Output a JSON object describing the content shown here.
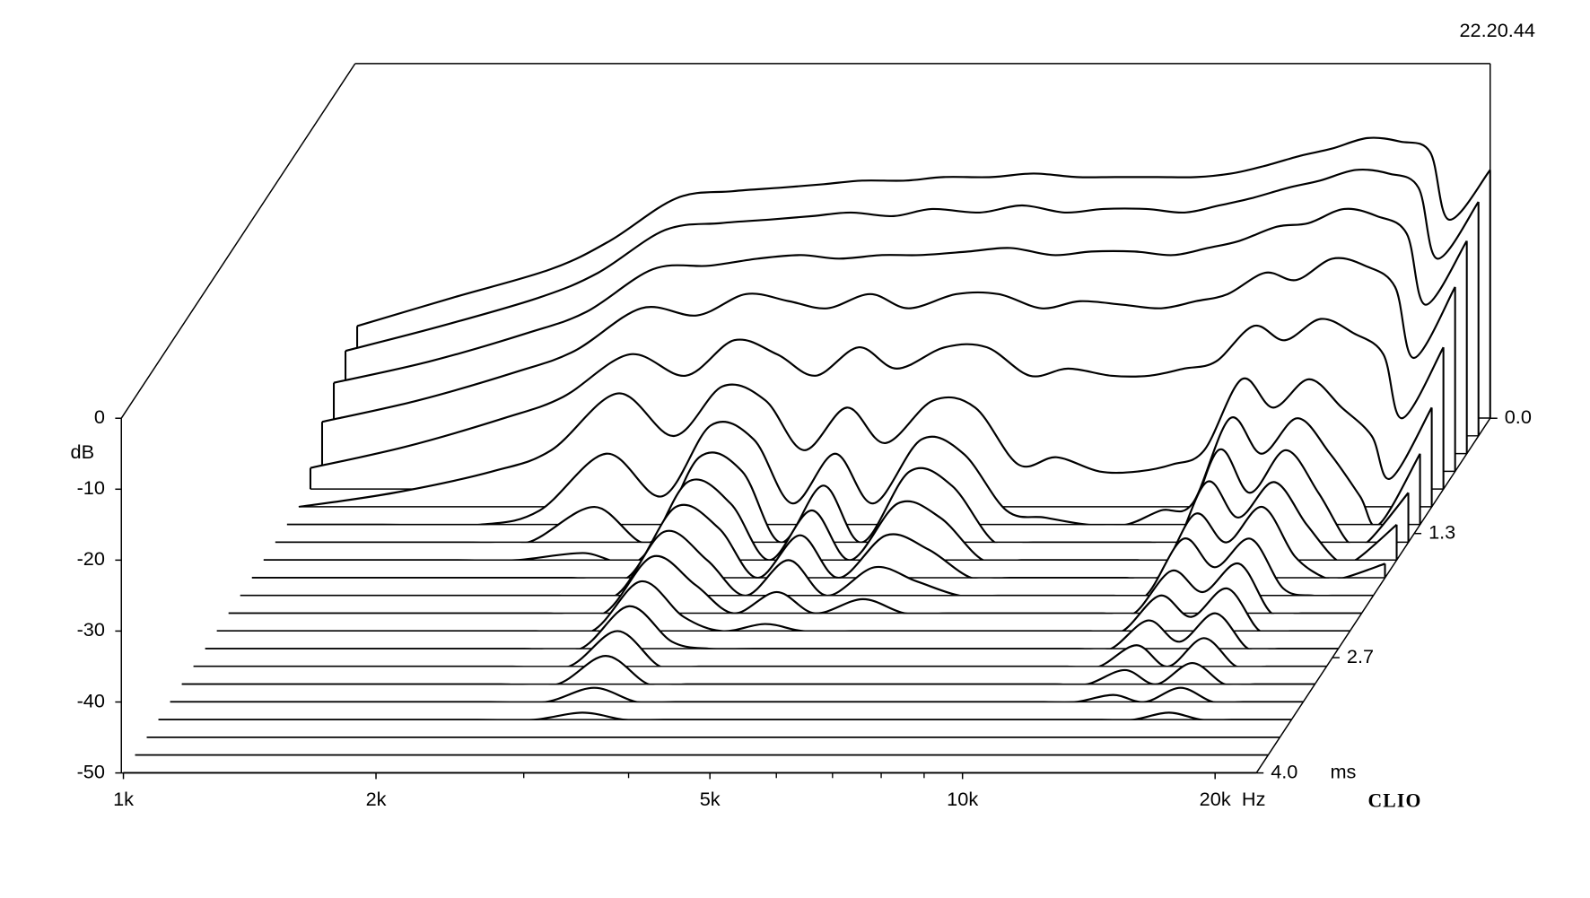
{
  "chart_data": {
    "type": "waterfall",
    "stamp": "22.20.44",
    "brand": "CLIO",
    "y_label": "dB",
    "x_label": "Hz",
    "t_label": "ms",
    "color": "#000000",
    "log_x": true,
    "x": [
      1000,
      1300,
      1700,
      2000,
      2400,
      2800,
      3200,
      3600,
      4000,
      4500,
      5000,
      5700,
      6400,
      7200,
      8000,
      9000,
      10000,
      11000,
      12000,
      13300,
      14500,
      16000,
      17500,
      19000,
      20000,
      22400
    ],
    "xlim": [
      1000,
      22400
    ],
    "xticks": [
      {
        "value": 1000,
        "label": "1k"
      },
      {
        "value": 2000,
        "label": "2k"
      },
      {
        "value": 5000,
        "label": "5k"
      },
      {
        "value": 10000,
        "label": "10k"
      },
      {
        "value": 20000,
        "label": "20k"
      }
    ],
    "xminor": [
      3000,
      4000,
      6000,
      7000,
      8000,
      9000
    ],
    "ylim": [
      -50,
      0
    ],
    "yticks": [
      0,
      -10,
      -20,
      -30,
      -40,
      -50
    ],
    "tlim": [
      0,
      4
    ],
    "tticks": [
      {
        "value": 0,
        "label": "0.0"
      },
      1.3,
      2.7,
      {
        "value": 4,
        "label": "4.0"
      }
    ],
    "slices": [
      {
        "time": 0,
        "values": [
          -37,
          -33,
          -29,
          -25,
          -19,
          -18,
          -17.5,
          -17,
          -16.5,
          -16.5,
          -16,
          -16,
          -15.5,
          -16,
          -16,
          -16,
          -16,
          -15.5,
          -14.5,
          -13,
          -12,
          -10.5,
          -11,
          -12.5,
          -22,
          -15
        ]
      },
      {
        "time": 0.2,
        "values": [
          -38,
          -34.5,
          -30.5,
          -27,
          -21,
          -20,
          -19.5,
          -19,
          -18.5,
          -19,
          -18,
          -18.5,
          -17.5,
          -18.5,
          -18,
          -18,
          -18.5,
          -17.5,
          -16.5,
          -15,
          -14,
          -12.5,
          -13,
          -15,
          -25,
          -17
        ]
      },
      {
        "time": 0.4,
        "values": [
          -40,
          -37,
          -33,
          -30,
          -24,
          -23.5,
          -22.5,
          -22,
          -22.5,
          -22,
          -22,
          -21.5,
          -21,
          -22,
          -21.5,
          -21.5,
          -22,
          -21,
          -20,
          -18,
          -17.5,
          -15.5,
          -16.5,
          -19,
          -29,
          -20
        ]
      },
      {
        "time": 0.6,
        "values": [
          -43,
          -40,
          -36,
          -33,
          -27,
          -28,
          -25,
          -26,
          -27,
          -25,
          -27,
          -25,
          -25,
          -27,
          -26,
          -26.5,
          -27,
          -26,
          -25,
          -22,
          -23,
          -20,
          -21,
          -24,
          -34,
          -24
        ]
      },
      {
        "time": 0.8,
        "values": [
          -47,
          -44,
          -40,
          -37,
          -31,
          -34,
          -29,
          -31,
          -34,
          -30,
          -33,
          -30,
          -30,
          -34,
          -33,
          -34,
          -34,
          -33,
          -32,
          -27,
          -29,
          -26,
          -28,
          -31,
          -40,
          -30
        ]
      },
      {
        "time": 1.0,
        "values": [
          -50,
          -48,
          -45,
          -42,
          -34,
          -40,
          -33,
          -35,
          -42,
          -36,
          -41,
          -35,
          -36,
          -44,
          -43,
          -45,
          -45,
          -44,
          -42,
          -32,
          -36,
          -32,
          -36,
          -40,
          -46,
          -36
        ]
      },
      {
        "time": 1.2,
        "values": [
          -50,
          -50,
          -50,
          -48,
          -40,
          -46,
          -36,
          -38,
          -47,
          -40,
          -47,
          -38,
          -40,
          -48,
          -49,
          -50,
          -50,
          -48,
          -47,
          -35,
          -40,
          -35,
          -40,
          -46,
          -50,
          -40
        ]
      },
      {
        "time": 1.4,
        "values": [
          -50,
          -50,
          -50,
          -50,
          -45,
          -50,
          -38,
          -40,
          -50,
          -42,
          -50,
          -40,
          -42,
          -50,
          -50,
          -50,
          -50,
          -50,
          -50,
          -37,
          -43,
          -37,
          -43,
          -50,
          -50,
          -43
        ]
      },
      {
        "time": 1.6,
        "values": [
          -50,
          -50,
          -50,
          -50,
          -49,
          -50,
          -39,
          -42,
          -50,
          -43,
          -50,
          -42,
          -44,
          -50,
          -50,
          -50,
          -50,
          -50,
          -50,
          -39,
          -44,
          -39,
          -45,
          -50,
          -50,
          -45
        ]
      },
      {
        "time": 1.8,
        "values": [
          -50,
          -50,
          -50,
          -50,
          -50,
          -50,
          -40,
          -43,
          -50,
          -44,
          -50,
          -44,
          -46,
          -50,
          -50,
          -50,
          -50,
          -50,
          -50,
          -41,
          -45,
          -40,
          -47,
          -50,
          -50,
          -48
        ]
      },
      {
        "time": 2.0,
        "values": [
          -50,
          -50,
          -50,
          -50,
          -50,
          -50,
          -41,
          -45,
          -50,
          -45,
          -50,
          -46,
          -48,
          -50,
          -50,
          -50,
          -50,
          -50,
          -50,
          -42,
          -46,
          -42,
          -49,
          -50,
          -50,
          -50
        ]
      },
      {
        "time": 2.2,
        "values": [
          -50,
          -50,
          -50,
          -50,
          -50,
          -50,
          -42,
          -46,
          -50,
          -47,
          -50,
          -48,
          -50,
          -50,
          -50,
          -50,
          -50,
          -50,
          -50,
          -44,
          -47,
          -43,
          -50,
          -50,
          -50,
          -50
        ]
      },
      {
        "time": 2.4,
        "values": [
          -50,
          -50,
          -50,
          -50,
          -50,
          -50,
          -43,
          -48,
          -50,
          -49,
          -50,
          -50,
          -50,
          -50,
          -50,
          -50,
          -50,
          -50,
          -50,
          -45,
          -48,
          -44,
          -50,
          -50,
          -50,
          -50
        ]
      },
      {
        "time": 2.6,
        "values": [
          -50,
          -50,
          -50,
          -50,
          -50,
          -50,
          -44,
          -49,
          -50,
          -50,
          -50,
          -50,
          -50,
          -50,
          -50,
          -50,
          -50,
          -50,
          -50,
          -46,
          -49,
          -45,
          -50,
          -50,
          -50,
          -50
        ]
      },
      {
        "time": 2.8,
        "values": [
          -50,
          -50,
          -50,
          -50,
          -50,
          -50,
          -45,
          -50,
          -50,
          -50,
          -50,
          -50,
          -50,
          -50,
          -50,
          -50,
          -50,
          -50,
          -50,
          -47,
          -50,
          -46,
          -50,
          -50,
          -50,
          -50
        ]
      },
      {
        "time": 3.0,
        "values": [
          -50,
          -50,
          -50,
          -50,
          -50,
          -50,
          -46,
          -50,
          -50,
          -50,
          -50,
          -50,
          -50,
          -50,
          -50,
          -50,
          -50,
          -50,
          -50,
          -48,
          -50,
          -47,
          -50,
          -50,
          -50,
          -50
        ]
      },
      {
        "time": 3.2,
        "values": [
          -50,
          -50,
          -50,
          -50,
          -50,
          -50,
          -48,
          -50,
          -50,
          -50,
          -50,
          -50,
          -50,
          -50,
          -50,
          -50,
          -50,
          -50,
          -50,
          -49,
          -50,
          -48,
          -50,
          -50,
          -50,
          -50
        ]
      },
      {
        "time": 3.4,
        "values": [
          -50,
          -50,
          -50,
          -50,
          -50,
          -50,
          -49,
          -50,
          -50,
          -50,
          -50,
          -50,
          -50,
          -50,
          -50,
          -50,
          -50,
          -50,
          -50,
          -50,
          -50,
          -49,
          -50,
          -50,
          -50,
          -50
        ]
      },
      {
        "time": 3.6,
        "values": [
          -50,
          -50,
          -50,
          -50,
          -50,
          -50,
          -50,
          -50,
          -50,
          -50,
          -50,
          -50,
          -50,
          -50,
          -50,
          -50,
          -50,
          -50,
          -50,
          -50,
          -50,
          -50,
          -50,
          -50,
          -50,
          -50
        ]
      },
      {
        "time": 3.8,
        "values": [
          -50,
          -50,
          -50,
          -50,
          -50,
          -50,
          -50,
          -50,
          -50,
          -50,
          -50,
          -50,
          -50,
          -50,
          -50,
          -50,
          -50,
          -50,
          -50,
          -50,
          -50,
          -50,
          -50,
          -50,
          -50,
          -50
        ]
      },
      {
        "time": 4.0,
        "values": [
          -50,
          -50,
          -50,
          -50,
          -50,
          -50,
          -50,
          -50,
          -50,
          -50,
          -50,
          -50,
          -50,
          -50,
          -50,
          -50,
          -50,
          -50,
          -50,
          -50,
          -50,
          -50,
          -50,
          -50,
          -50,
          -50
        ]
      }
    ]
  }
}
